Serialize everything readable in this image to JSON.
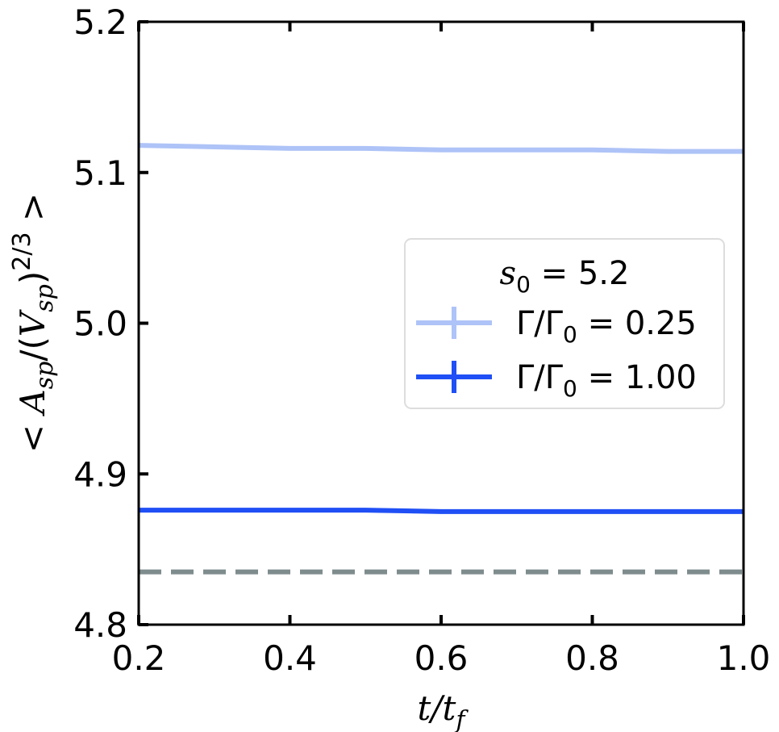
{
  "chart_data": {
    "type": "line",
    "xlabel": "t/t_f",
    "ylabel": "< A_sp/(V_sp)^(2/3) >",
    "xlim": [
      0.2,
      1.0
    ],
    "ylim": [
      4.8,
      5.2
    ],
    "x_ticks": [
      "0.2",
      "0.4",
      "0.6",
      "0.8",
      "1.0"
    ],
    "y_ticks": [
      "4.8",
      "4.9",
      "5.0",
      "5.1",
      "5.2"
    ],
    "x_tick_values": [
      0.2,
      0.4,
      0.6,
      0.8,
      1.0
    ],
    "y_tick_values": [
      4.8,
      4.9,
      5.0,
      5.1,
      5.2
    ],
    "grid": false,
    "legend": {
      "placement": "center-right",
      "title": "s_0 = 5.2",
      "entries": [
        "Γ/Γ_0 = 0.25",
        "Γ/Γ_0 = 1.00"
      ]
    },
    "series": [
      {
        "name": "Γ/Γ_0 = 0.25",
        "color": "#aec3f7",
        "x": [
          0.2,
          0.3,
          0.4,
          0.5,
          0.6,
          0.7,
          0.8,
          0.9,
          1.0
        ],
        "y": [
          5.118,
          5.117,
          5.116,
          5.116,
          5.115,
          5.115,
          5.115,
          5.114,
          5.114
        ]
      },
      {
        "name": "Γ/Γ_0 = 1.00",
        "color": "#1f4ff5",
        "x": [
          0.2,
          0.3,
          0.4,
          0.5,
          0.6,
          0.7,
          0.8,
          0.9,
          1.0
        ],
        "y": [
          4.876,
          4.876,
          4.876,
          4.876,
          4.875,
          4.875,
          4.875,
          4.875,
          4.875
        ]
      }
    ],
    "reference_line": {
      "y": 4.835,
      "style": "dashed",
      "color": "#7f8c8d"
    }
  }
}
